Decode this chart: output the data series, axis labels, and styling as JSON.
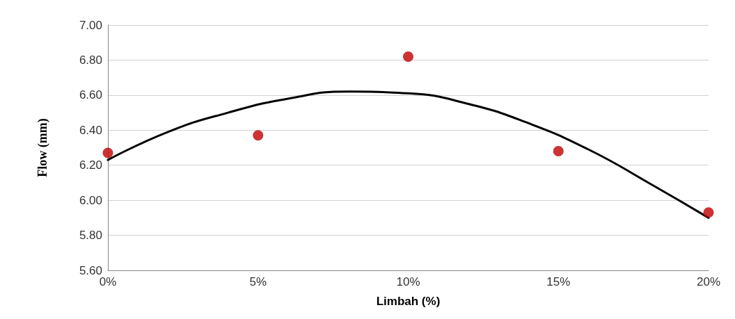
{
  "chart_data": {
    "type": "scatter",
    "xlabel": "Limbah (%)",
    "ylabel": "Flow (mm)",
    "xlim": [
      0,
      20
    ],
    "xticks": [
      {
        "value": 0,
        "label": "0%"
      },
      {
        "value": 5,
        "label": "5%"
      },
      {
        "value": 10,
        "label": "10%"
      },
      {
        "value": 15,
        "label": "15%"
      },
      {
        "value": 20,
        "label": "20%"
      }
    ],
    "ylim": [
      5.6,
      7.0
    ],
    "yticks": [
      {
        "value": 5.6,
        "label": "5.60"
      },
      {
        "value": 5.8,
        "label": "5.80"
      },
      {
        "value": 6.0,
        "label": "6.00"
      },
      {
        "value": 6.2,
        "label": "6.20"
      },
      {
        "value": 6.4,
        "label": "6.40"
      },
      {
        "value": 6.6,
        "label": "6.60"
      },
      {
        "value": 6.8,
        "label": "6.80"
      },
      {
        "value": 7.0,
        "label": "7.00"
      }
    ],
    "grid": "y",
    "marker": "circle",
    "series": [
      {
        "color": "#c00000",
        "x": [
          0,
          5,
          10,
          15,
          20
        ],
        "values": [
          6.27,
          6.37,
          6.82,
          6.28,
          5.93
        ]
      },
      {
        "type": "line",
        "color": "#000000",
        "line_style": "solid",
        "marker": "none",
        "x": [
          0,
          2,
          4,
          6,
          8,
          10,
          12,
          14,
          16,
          18,
          20
        ],
        "values": [
          6.23,
          6.39,
          6.5,
          6.58,
          6.62,
          6.61,
          6.55,
          6.44,
          6.29,
          6.1,
          5.9
        ]
      }
    ]
  }
}
